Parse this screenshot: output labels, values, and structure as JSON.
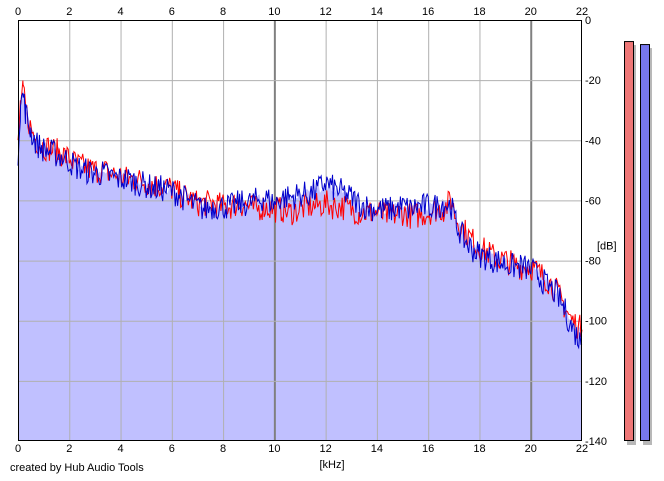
{
  "credit": "created by Hub Audio Tools",
  "chart_data": {
    "type": "area",
    "xlabel": "[kHz]",
    "ylabel": "[dB]",
    "xlim": [
      0,
      22
    ],
    "ylim": [
      -140,
      0
    ],
    "x_ticks": [
      0,
      2,
      4,
      6,
      8,
      10,
      12,
      14,
      16,
      18,
      20,
      22
    ],
    "y_ticks": [
      0,
      -20,
      -40,
      -60,
      -80,
      -100,
      -120,
      -140
    ],
    "y_tick_labels": [
      "0",
      "-20",
      "-40",
      "-60",
      "-80",
      "-100",
      "-120",
      "-140"
    ],
    "grid": true,
    "x": [
      0,
      0.1,
      0.2,
      0.3,
      0.5,
      0.7,
      1.0,
      1.3,
      1.6,
      2.0,
      2.3,
      2.6,
      3.0,
      3.3,
      3.6,
      4.0,
      4.3,
      4.6,
      5.0,
      5.3,
      5.6,
      6.0,
      6.3,
      6.6,
      7.0,
      7.3,
      7.6,
      8.0,
      8.3,
      8.6,
      9.0,
      9.3,
      9.6,
      10.0,
      10.3,
      10.6,
      11.0,
      11.3,
      11.6,
      12.0,
      12.3,
      12.6,
      13.0,
      13.3,
      13.6,
      14.0,
      14.3,
      14.6,
      15.0,
      15.3,
      15.6,
      16.0,
      16.3,
      16.6,
      16.9,
      17.1,
      17.4,
      17.7,
      18.0,
      18.3,
      18.6,
      19.0,
      19.3,
      19.6,
      20.0,
      20.3,
      20.6,
      21.0,
      21.3,
      21.6,
      22.0
    ],
    "series": [
      {
        "color": "#ff0000",
        "values": [
          -42,
          -27,
          -24,
          -30,
          -36,
          -40,
          -42,
          -43,
          -44,
          -46,
          -48,
          -49,
          -50,
          -50,
          -51,
          -52,
          -53,
          -53,
          -54,
          -55,
          -55,
          -56,
          -58,
          -59,
          -61,
          -61,
          -61,
          -62,
          -62,
          -61,
          -62,
          -63,
          -62,
          -63,
          -63,
          -64,
          -63,
          -62,
          -62,
          -61,
          -62,
          -62,
          -63,
          -64,
          -64,
          -64,
          -65,
          -65,
          -64,
          -65,
          -65,
          -64,
          -63,
          -63,
          -60,
          -66,
          -70,
          -73,
          -76,
          -77,
          -79,
          -80,
          -81,
          -82,
          -82,
          -84,
          -86,
          -90,
          -95,
          -100,
          -103
        ]
      },
      {
        "color": "#0000cc",
        "values": [
          -44,
          -28,
          -25,
          -31,
          -37,
          -41,
          -43,
          -44,
          -45,
          -47,
          -49,
          -50,
          -51,
          -51,
          -52,
          -53,
          -53,
          -54,
          -55,
          -56,
          -56,
          -57,
          -58,
          -60,
          -62,
          -63,
          -62,
          -62,
          -62,
          -61,
          -61,
          -60,
          -59,
          -61,
          -59,
          -59,
          -58,
          -58,
          -57,
          -54,
          -56,
          -57,
          -59,
          -61,
          -62,
          -63,
          -63,
          -63,
          -62,
          -63,
          -62,
          -62,
          -62,
          -61,
          -62,
          -68,
          -73,
          -76,
          -78,
          -79,
          -80,
          -81,
          -82,
          -82,
          -83,
          -85,
          -88,
          -91,
          -96,
          -102,
          -108
        ]
      }
    ],
    "level_meters": [
      {
        "color": "#ee7777",
        "value": -7
      },
      {
        "color": "#7777ee",
        "value": -8
      }
    ],
    "fill_color": "#c0c0ff",
    "plot_background": "#ffffff",
    "grid_color": "#b0b0b0",
    "major_grid_color": "#808080"
  }
}
